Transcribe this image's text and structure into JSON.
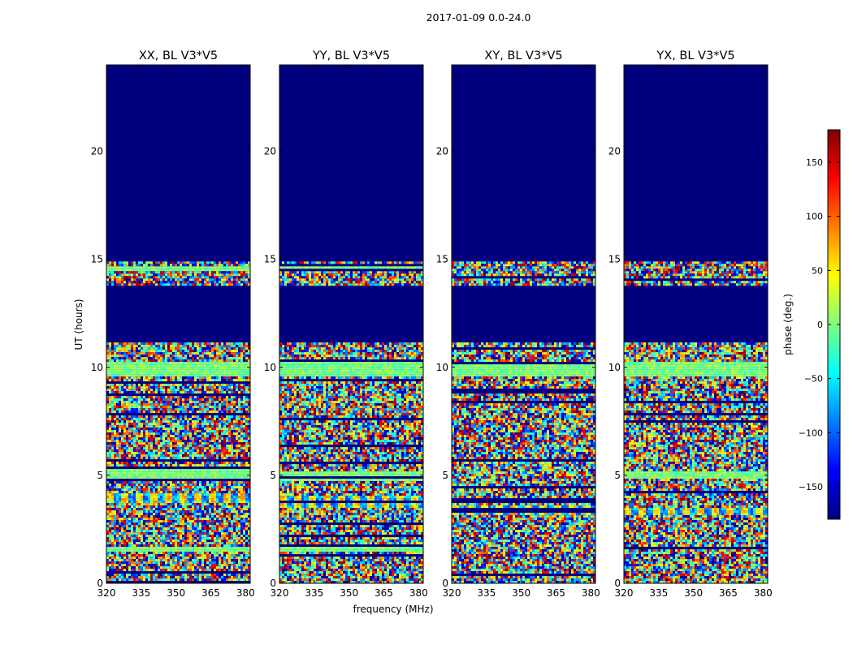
{
  "chart_data": {
    "type": "heatmap",
    "suptitle": "2017-01-09 0.0-24.0",
    "xlabel": "frequency (MHz)",
    "ylabel": "UT (hours)",
    "xlim": [
      320,
      382
    ],
    "ylim": [
      0,
      24
    ],
    "xticks": [
      320,
      335,
      350,
      365,
      380
    ],
    "yticks": [
      0,
      5,
      10,
      15,
      20
    ],
    "panels": [
      {
        "title": "XX, BL V3*V5",
        "noise_ranges": [
          [
            0,
            11.15
          ],
          [
            13.8,
            14.9
          ]
        ],
        "calm_bands": [
          [
            1.55,
            1.75
          ],
          [
            4.8,
            5.3
          ],
          [
            9.6,
            10.3
          ],
          [
            14.45,
            14.7
          ]
        ],
        "striped_bands": [
          [
            3.8,
            4.2
          ]
        ]
      },
      {
        "title": "YY, BL V3*V5",
        "noise_ranges": [
          [
            0,
            11.15
          ],
          [
            13.8,
            14.9
          ]
        ],
        "calm_bands": [
          [
            1.55,
            1.75
          ],
          [
            4.8,
            5.2
          ],
          [
            9.6,
            10.3
          ],
          [
            14.45,
            14.7
          ]
        ],
        "striped_bands": [
          [
            3.6,
            4.1
          ]
        ]
      },
      {
        "title": "XY, BL V3*V5",
        "noise_ranges": [
          [
            0,
            11.15
          ],
          [
            13.8,
            14.9
          ]
        ],
        "calm_bands": [
          [
            9.6,
            10.3
          ]
        ],
        "striped_bands": [
          [
            3.2,
            3.7
          ]
        ]
      },
      {
        "title": "YX, BL V3*V5",
        "noise_ranges": [
          [
            0,
            11.15
          ],
          [
            13.8,
            14.9
          ]
        ],
        "calm_bands": [
          [
            4.9,
            5.2
          ],
          [
            9.6,
            10.3
          ]
        ],
        "striped_bands": [
          [
            3.2,
            3.6
          ]
        ]
      }
    ],
    "colorbar": {
      "label": "phase (deg.)",
      "vmin": -180,
      "vmax": 180,
      "ticks": [
        -150,
        -100,
        -50,
        0,
        50,
        100,
        150
      ],
      "tick_labels": [
        "−150",
        "−100",
        "−50",
        "0",
        "50",
        "100",
        "150"
      ],
      "colormap": "jet",
      "colors": [
        "#00007f",
        "#0000ff",
        "#007fff",
        "#00ffff",
        "#7fff7f",
        "#ffff00",
        "#ff7f00",
        "#ff0000",
        "#7f0000"
      ]
    },
    "background_color": "#00007f"
  }
}
